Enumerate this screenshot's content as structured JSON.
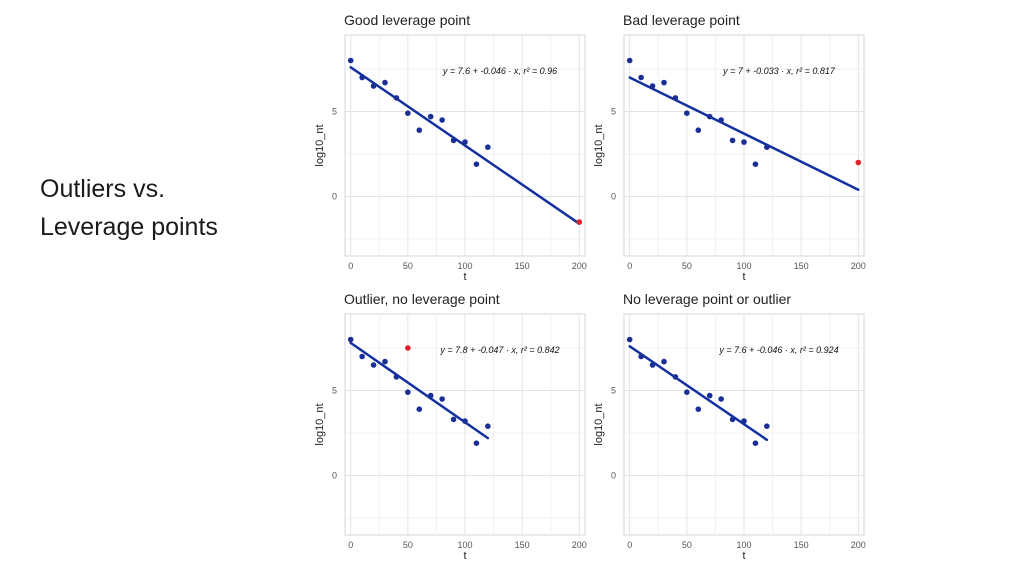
{
  "slide": {
    "title_line1": "Outliers vs.",
    "title_line2": "Leverage points"
  },
  "style": {
    "point_color": "#1a2f96",
    "line_color": "#1330a0",
    "highlight_color": "#e0202a"
  },
  "chart_data": [
    {
      "type": "scatter",
      "title": "Good leverage point",
      "xlabel": "t",
      "ylabel": "log10_nt",
      "xlim": [
        -5,
        205
      ],
      "ylim": [
        -3.5,
        9.5
      ],
      "xticks": [
        0,
        50,
        100,
        150,
        200
      ],
      "yticks": [
        0,
        5
      ],
      "grid": true,
      "points": [
        [
          0,
          8.0
        ],
        [
          10,
          7.0
        ],
        [
          20,
          6.5
        ],
        [
          30,
          6.7
        ],
        [
          40,
          5.8
        ],
        [
          50,
          4.9
        ],
        [
          60,
          3.9
        ],
        [
          70,
          4.7
        ],
        [
          80,
          4.5
        ],
        [
          90,
          3.3
        ],
        [
          100,
          3.2
        ],
        [
          110,
          1.9
        ],
        [
          120,
          2.9
        ]
      ],
      "highlight": [
        [
          200,
          -1.5
        ]
      ],
      "fit": {
        "x": [
          0,
          200
        ],
        "y": [
          7.6,
          -1.6
        ]
      },
      "equation": "y = 7.6 + -0.046 · x,  r² = 0.96"
    },
    {
      "type": "scatter",
      "title": "Bad leverage point",
      "xlabel": "t",
      "ylabel": "log10_nt",
      "xlim": [
        -5,
        205
      ],
      "ylim": [
        -3.5,
        9.5
      ],
      "xticks": [
        0,
        50,
        100,
        150,
        200
      ],
      "yticks": [
        0,
        5
      ],
      "grid": true,
      "points": [
        [
          0,
          8.0
        ],
        [
          10,
          7.0
        ],
        [
          20,
          6.5
        ],
        [
          30,
          6.7
        ],
        [
          40,
          5.8
        ],
        [
          50,
          4.9
        ],
        [
          60,
          3.9
        ],
        [
          70,
          4.7
        ],
        [
          80,
          4.5
        ],
        [
          90,
          3.3
        ],
        [
          100,
          3.2
        ],
        [
          110,
          1.9
        ],
        [
          120,
          2.9
        ]
      ],
      "highlight": [
        [
          200,
          2.0
        ]
      ],
      "fit": {
        "x": [
          0,
          200
        ],
        "y": [
          7.0,
          0.4
        ]
      },
      "equation": "y = 7 + -0.033 · x,  r² = 0.817"
    },
    {
      "type": "scatter",
      "title": "Outlier, no leverage point",
      "xlabel": "t",
      "ylabel": "log10_nt",
      "xlim": [
        -5,
        205
      ],
      "ylim": [
        -3.5,
        9.5
      ],
      "xticks": [
        0,
        50,
        100,
        150,
        200
      ],
      "yticks": [
        0,
        5
      ],
      "grid": true,
      "points": [
        [
          0,
          8.0
        ],
        [
          10,
          7.0
        ],
        [
          20,
          6.5
        ],
        [
          30,
          6.7
        ],
        [
          40,
          5.8
        ],
        [
          50,
          4.9
        ],
        [
          60,
          3.9
        ],
        [
          70,
          4.7
        ],
        [
          80,
          4.5
        ],
        [
          90,
          3.3
        ],
        [
          100,
          3.2
        ],
        [
          110,
          1.9
        ],
        [
          120,
          2.9
        ]
      ],
      "highlight": [
        [
          50,
          7.5
        ]
      ],
      "fit": {
        "x": [
          0,
          120
        ],
        "y": [
          7.8,
          2.2
        ]
      },
      "equation": "y = 7.8 + -0.047 · x,  r² = 0.842"
    },
    {
      "type": "scatter",
      "title": "No leverage point or outlier",
      "xlabel": "t",
      "ylabel": "log10_nt",
      "xlim": [
        -5,
        205
      ],
      "ylim": [
        -3.5,
        9.5
      ],
      "xticks": [
        0,
        50,
        100,
        150,
        200
      ],
      "yticks": [
        0,
        5
      ],
      "grid": true,
      "points": [
        [
          0,
          8.0
        ],
        [
          10,
          7.0
        ],
        [
          20,
          6.5
        ],
        [
          30,
          6.7
        ],
        [
          40,
          5.8
        ],
        [
          50,
          4.9
        ],
        [
          60,
          3.9
        ],
        [
          70,
          4.7
        ],
        [
          80,
          4.5
        ],
        [
          90,
          3.3
        ],
        [
          100,
          3.2
        ],
        [
          110,
          1.9
        ],
        [
          120,
          2.9
        ]
      ],
      "highlight": [],
      "fit": {
        "x": [
          0,
          120
        ],
        "y": [
          7.6,
          2.1
        ]
      },
      "equation": "y = 7.6 + -0.046 · x,  r² = 0.924"
    }
  ]
}
